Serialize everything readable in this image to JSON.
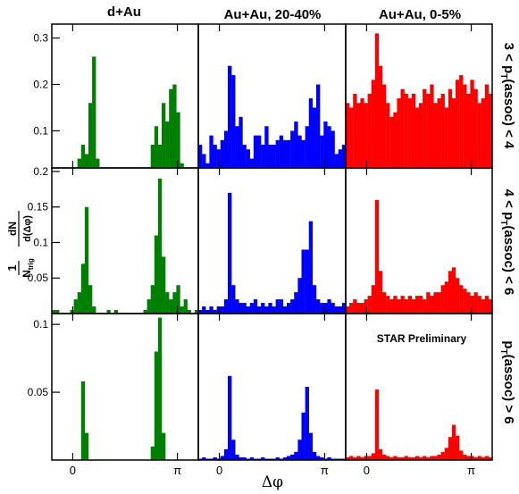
{
  "figure": {
    "columns": [
      "d+Au",
      "Au+Au, 20-40%",
      "Au+Au, 0-5%"
    ],
    "row_labels": [
      {
        "pre": "3 < p",
        "sub": "T",
        "post": "(assoc) < 4"
      },
      {
        "pre": "4 < p",
        "sub": "T",
        "post": "(assoc) < 6"
      },
      {
        "pre": "p",
        "sub": "T",
        "post": "(assoc) > 6"
      }
    ],
    "ylabel": {
      "num_1": "1",
      "num_2": "dN",
      "den_N": "N",
      "den_sub": "trig",
      "den_d": "d(Δφ)"
    },
    "xlabel": "Δφ",
    "annotation": "STAR Preliminary",
    "colors": [
      "#008000",
      "#0000ff",
      "#ff0000"
    ]
  },
  "chart_data": [
    {
      "type": "bar",
      "title": "d+Au",
      "row": 0,
      "col": 0,
      "bins": 40,
      "x_range": [
        -0.6283,
        3.7699
      ],
      "xticks": [
        "0",
        "π"
      ],
      "yticks": [
        "0.1",
        "0.2",
        "0.3"
      ],
      "ylim": [
        0.02,
        0.33
      ],
      "values": [
        0,
        0,
        0,
        0,
        0,
        0,
        0,
        0.04,
        0.07,
        0.05,
        0.16,
        0.26,
        0.04,
        0,
        0,
        0,
        0,
        0.02,
        0,
        0.02,
        0,
        0,
        0.02,
        0,
        0,
        0,
        0,
        0.07,
        0.11,
        0.07,
        0.16,
        0.12,
        0.19,
        0.2,
        0.14,
        0.03,
        0,
        0,
        0,
        0
      ]
    },
    {
      "type": "bar",
      "title": "Au+Au, 20-40%",
      "row": 0,
      "col": 1,
      "bins": 40,
      "x_range": [
        -0.6283,
        3.7699
      ],
      "xticks": [
        "0",
        "π"
      ],
      "ylim": [
        0.02,
        0.33
      ],
      "values": [
        0.07,
        0.05,
        0.03,
        0.09,
        0.07,
        0.06,
        0.08,
        0.1,
        0.24,
        0.22,
        0.11,
        0.13,
        0.07,
        0.06,
        0.04,
        0.09,
        0.09,
        0.07,
        0.11,
        0.07,
        0.07,
        0.08,
        0.09,
        0.08,
        0.08,
        0.1,
        0.12,
        0.09,
        0.08,
        0.11,
        0.17,
        0.15,
        0.2,
        0.09,
        0.12,
        0.11,
        0.1,
        0.05,
        0.06,
        0.07
      ]
    },
    {
      "type": "bar",
      "title": "Au+Au, 0-5%",
      "row": 0,
      "col": 2,
      "bins": 40,
      "x_range": [
        -0.6283,
        3.7699
      ],
      "xticks": [
        "0",
        "π"
      ],
      "ylim": [
        0.02,
        0.33
      ],
      "values": [
        0.16,
        0.15,
        0.18,
        0.16,
        0.17,
        0.16,
        0.18,
        0.21,
        0.31,
        0.24,
        0.2,
        0.16,
        0.13,
        0.14,
        0.17,
        0.19,
        0.18,
        0.17,
        0.18,
        0.15,
        0.16,
        0.19,
        0.18,
        0.2,
        0.16,
        0.17,
        0.18,
        0.15,
        0.19,
        0.17,
        0.21,
        0.22,
        0.2,
        0.18,
        0.21,
        0.19,
        0.16,
        0.17,
        0.2,
        0.18
      ]
    },
    {
      "type": "bar",
      "row": 1,
      "col": 0,
      "bins": 40,
      "x_range": [
        -0.6283,
        3.7699
      ],
      "xticks": [
        "0",
        "π"
      ],
      "yticks": [
        "0.05",
        "0.1",
        "0.15",
        "0.2"
      ],
      "ylim": [
        0,
        0.205
      ],
      "values": [
        0.005,
        0.005,
        0,
        0,
        0,
        0.005,
        0.02,
        0.03,
        0.07,
        0.15,
        0.04,
        0.01,
        0,
        0,
        0,
        0.005,
        0,
        0.005,
        0,
        0,
        0,
        0,
        0,
        0,
        0,
        0.005,
        0.02,
        0.04,
        0.11,
        0.19,
        0.08,
        0.03,
        0.02,
        0.03,
        0.04,
        0.01,
        0.02,
        0.005,
        0,
        0.005
      ]
    },
    {
      "type": "bar",
      "row": 1,
      "col": 1,
      "bins": 40,
      "x_range": [
        -0.6283,
        3.7699
      ],
      "xticks": [
        "0",
        "π"
      ],
      "ylim": [
        0,
        0.205
      ],
      "values": [
        0.005,
        0.01,
        0.005,
        0.01,
        0.005,
        0.01,
        0.01,
        0.02,
        0.17,
        0.04,
        0.02,
        0.015,
        0.015,
        0.01,
        0.015,
        0.02,
        0.01,
        0.015,
        0.01,
        0.015,
        0.01,
        0.02,
        0.02,
        0.01,
        0.015,
        0.02,
        0.03,
        0.05,
        0.09,
        0.09,
        0.13,
        0.04,
        0.02,
        0.015,
        0.015,
        0.02,
        0.015,
        0.01,
        0.01,
        0.015
      ]
    },
    {
      "type": "bar",
      "row": 1,
      "col": 2,
      "bins": 40,
      "x_range": [
        -0.6283,
        3.7699
      ],
      "xticks": [
        "0",
        "π"
      ],
      "ylim": [
        0,
        0.205
      ],
      "values": [
        0.01,
        0.015,
        0.02,
        0.015,
        0.015,
        0.02,
        0.025,
        0.04,
        0.16,
        0.06,
        0.03,
        0.025,
        0.02,
        0.025,
        0.02,
        0.025,
        0.02,
        0.025,
        0.02,
        0.025,
        0.025,
        0.02,
        0.03,
        0.025,
        0.03,
        0.03,
        0.04,
        0.045,
        0.06,
        0.065,
        0.05,
        0.04,
        0.035,
        0.03,
        0.025,
        0.03,
        0.025,
        0.02,
        0.025,
        0.02
      ]
    },
    {
      "type": "bar",
      "row": 2,
      "col": 0,
      "bins": 40,
      "x_range": [
        -0.6283,
        3.7699
      ],
      "xticks": [
        "0",
        "π"
      ],
      "yticks": [
        "0.05",
        "0.1"
      ],
      "ylim": [
        0,
        0.108
      ],
      "values": [
        0,
        0,
        0,
        0,
        0,
        0,
        0,
        0,
        0.058,
        0.02,
        0,
        0,
        0,
        0,
        0,
        0,
        0,
        0,
        0,
        0,
        0,
        0,
        0,
        0,
        0,
        0,
        0,
        0.01,
        0.08,
        0.105,
        0.02,
        0,
        0,
        0,
        0,
        0,
        0,
        0,
        0,
        0
      ]
    },
    {
      "type": "bar",
      "row": 2,
      "col": 1,
      "bins": 40,
      "x_range": [
        -0.6283,
        3.7699
      ],
      "xticks": [
        "0",
        "π"
      ],
      "ylim": [
        0,
        0.108
      ],
      "values": [
        0.001,
        0.002,
        0.001,
        0.001,
        0.002,
        0.001,
        0.003,
        0.008,
        0.062,
        0.015,
        0.004,
        0.002,
        0.002,
        0.001,
        0.002,
        0.001,
        0.001,
        0.002,
        0.001,
        0.001,
        0.001,
        0.002,
        0.001,
        0.002,
        0.003,
        0.004,
        0.006,
        0.015,
        0.035,
        0.054,
        0.02,
        0.006,
        0.003,
        0.002,
        0.001,
        0.002,
        0.001,
        0.001,
        0.001,
        0.001
      ]
    },
    {
      "type": "bar",
      "row": 2,
      "col": 2,
      "bins": 40,
      "x_range": [
        -0.6283,
        3.7699
      ],
      "xticks": [
        "0",
        "π"
      ],
      "ylim": [
        0,
        0.108
      ],
      "values": [
        0.002,
        0.003,
        0.002,
        0.003,
        0.002,
        0.003,
        0.003,
        0.005,
        0.052,
        0.008,
        0.004,
        0.003,
        0.002,
        0.003,
        0.002,
        0.002,
        0.003,
        0.002,
        0.002,
        0.003,
        0.002,
        0.003,
        0.002,
        0.003,
        0.003,
        0.004,
        0.006,
        0.009,
        0.017,
        0.026,
        0.018,
        0.007,
        0.004,
        0.003,
        0.003,
        0.002,
        0.003,
        0.002,
        0.003,
        0.002
      ]
    }
  ]
}
